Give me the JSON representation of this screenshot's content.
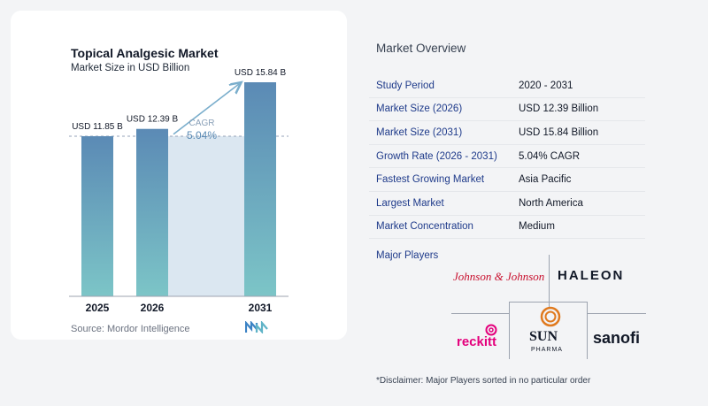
{
  "chart_data": {
    "type": "bar",
    "title": "Topical Analgesic Market",
    "subtitle": "Market Size in USD Billion",
    "categories": [
      "2025",
      "2026",
      "2031"
    ],
    "values": [
      11.85,
      12.39,
      15.84
    ],
    "value_labels": [
      "USD 11.85 B",
      "USD 12.39 B",
      "USD 15.84 B"
    ],
    "cagr_label": "CAGR",
    "cagr_value": "5.04%",
    "ylim": [
      0,
      18
    ],
    "grid": false,
    "colors": {
      "bar_top": "#5b8ab5",
      "bar_bottom": "#7cc5c7",
      "band": "#dbe7f1",
      "arrow": "#7aaecc",
      "cagr_text": "#5a8ab4"
    }
  },
  "source": "Source:  Mordor Intelligence",
  "overview": {
    "title": "Market Overview",
    "rows": [
      {
        "label": "Study Period",
        "value": "2020 - 2031"
      },
      {
        "label": "Market Size (2026)",
        "value": "USD 12.39 Billion"
      },
      {
        "label": "Market Size (2031)",
        "value": "USD 15.84 Billion"
      },
      {
        "label": "Growth Rate (2026 - 2031)",
        "value": "5.04% CAGR"
      },
      {
        "label": "Fastest Growing Market",
        "value": "Asia Pacific"
      },
      {
        "label": "Largest Market",
        "value": "North America"
      },
      {
        "label": "Market Concentration",
        "value": "Medium"
      }
    ]
  },
  "players": {
    "title": "Major Players",
    "logos": [
      "Johnson & Johnson",
      "HALEON",
      "reckitt",
      "SUN",
      "PHARMA",
      "sanofi"
    ]
  },
  "disclaimer": "*Disclaimer: Major Players sorted in no particular order"
}
